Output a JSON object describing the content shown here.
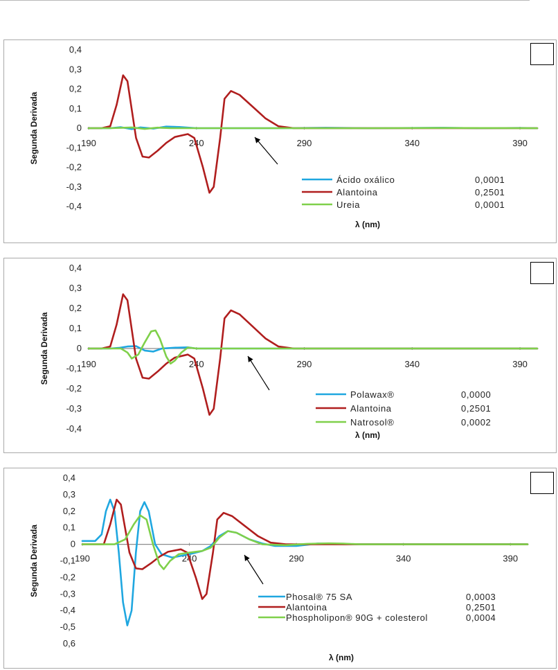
{
  "chart_data": [
    {
      "type": "line",
      "title": "",
      "xlabel": "λ (nm)",
      "ylabel": "Segunda Derivada",
      "xlim": [
        190,
        398
      ],
      "ylim": [
        -0.4,
        0.4
      ],
      "x_ticks": [
        "190",
        "240",
        "290",
        "340",
        "390"
      ],
      "y_ticks": [
        "0,4",
        "0,3",
        "0,2",
        "0,1",
        "0",
        "-0,1",
        "-0,2",
        "-0,3",
        "-0,4"
      ],
      "series": [
        {
          "name": "Ácido oxálico",
          "value": "0,0001",
          "color": "#1fa7e0",
          "points": [
            [
              190,
              0
            ],
            [
              200,
              0
            ],
            [
              205,
              0.005
            ],
            [
              210,
              -0.005
            ],
            [
              214,
              0.004
            ],
            [
              220,
              -0.002
            ],
            [
              226,
              0.008
            ],
            [
              232,
              0.006
            ],
            [
              240,
              0
            ],
            [
              260,
              0
            ],
            [
              280,
              0
            ],
            [
              300,
              0.002
            ],
            [
              320,
              0
            ],
            [
              340,
              0.001
            ],
            [
              355,
              0.002
            ],
            [
              370,
              0
            ],
            [
              390,
              0.001
            ],
            [
              398,
              0
            ]
          ]
        },
        {
          "name": "Alantoina",
          "value": "0,2501",
          "color": "#b01e1e",
          "points": [
            [
              190,
              0
            ],
            [
              196,
              0
            ],
            [
              200,
              0.01
            ],
            [
              203,
              0.12
            ],
            [
              206,
              0.27
            ],
            [
              208,
              0.24
            ],
            [
              212,
              -0.05
            ],
            [
              215,
              -0.145
            ],
            [
              218,
              -0.15
            ],
            [
              222,
              -0.115
            ],
            [
              226,
              -0.075
            ],
            [
              230,
              -0.045
            ],
            [
              236,
              -0.03
            ],
            [
              239,
              -0.05
            ],
            [
              243,
              -0.2
            ],
            [
              246,
              -0.33
            ],
            [
              248,
              -0.3
            ],
            [
              251,
              -0.05
            ],
            [
              253,
              0.15
            ],
            [
              256,
              0.19
            ],
            [
              260,
              0.17
            ],
            [
              266,
              0.11
            ],
            [
              272,
              0.05
            ],
            [
              278,
              0.01
            ],
            [
              285,
              0
            ],
            [
              300,
              0
            ],
            [
              320,
              0
            ],
            [
              340,
              0
            ],
            [
              360,
              0
            ],
            [
              380,
              0
            ],
            [
              398,
              0
            ]
          ]
        },
        {
          "name": "Ureia",
          "value": "0,0001",
          "color": "#7fd04a",
          "points": [
            [
              190,
              0
            ],
            [
              200,
              0
            ],
            [
              210,
              0.004
            ],
            [
              216,
              -0.004
            ],
            [
              222,
              0.003
            ],
            [
              228,
              0
            ],
            [
              240,
              0
            ],
            [
              260,
              0
            ],
            [
              290,
              0
            ],
            [
              320,
              0
            ],
            [
              350,
              0.001
            ],
            [
              398,
              0
            ]
          ]
        }
      ]
    },
    {
      "type": "line",
      "title": "",
      "xlabel": "λ (nm)",
      "ylabel": "Segunda Derivada",
      "xlim": [
        190,
        398
      ],
      "ylim": [
        -0.4,
        0.4
      ],
      "x_ticks": [
        "190",
        "240",
        "290",
        "340",
        "390"
      ],
      "y_ticks": [
        "0,4",
        "0,3",
        "0,2",
        "0,1",
        "0",
        "-0,1",
        "-0,2",
        "-0,3",
        "-0,4"
      ],
      "series": [
        {
          "name": "Polawax®",
          "value": "0,0000",
          "color": "#1fa7e0",
          "points": [
            [
              190,
              0
            ],
            [
              200,
              0
            ],
            [
              204,
              0.003
            ],
            [
              208,
              0.01
            ],
            [
              212,
              0.012
            ],
            [
              216,
              -0.01
            ],
            [
              220,
              -0.015
            ],
            [
              224,
              0
            ],
            [
              230,
              0.004
            ],
            [
              236,
              0.006
            ],
            [
              240,
              0
            ],
            [
              260,
              0
            ],
            [
              290,
              0
            ],
            [
              320,
              0
            ],
            [
              360,
              0
            ],
            [
              398,
              0
            ]
          ]
        },
        {
          "name": "Alantoina",
          "value": "0,2501",
          "color": "#b01e1e",
          "points": [
            [
              190,
              0
            ],
            [
              196,
              0
            ],
            [
              200,
              0.01
            ],
            [
              203,
              0.12
            ],
            [
              206,
              0.27
            ],
            [
              208,
              0.24
            ],
            [
              212,
              -0.05
            ],
            [
              215,
              -0.145
            ],
            [
              218,
              -0.15
            ],
            [
              222,
              -0.115
            ],
            [
              226,
              -0.075
            ],
            [
              230,
              -0.045
            ],
            [
              236,
              -0.03
            ],
            [
              239,
              -0.05
            ],
            [
              243,
              -0.2
            ],
            [
              246,
              -0.33
            ],
            [
              248,
              -0.3
            ],
            [
              251,
              -0.05
            ],
            [
              253,
              0.15
            ],
            [
              256,
              0.19
            ],
            [
              260,
              0.17
            ],
            [
              266,
              0.11
            ],
            [
              272,
              0.05
            ],
            [
              278,
              0.01
            ],
            [
              285,
              0
            ],
            [
              300,
              0
            ],
            [
              320,
              0
            ],
            [
              340,
              0
            ],
            [
              360,
              0
            ],
            [
              380,
              0
            ],
            [
              398,
              0
            ]
          ]
        },
        {
          "name": "Natrosol®",
          "value": "0,0002",
          "color": "#7fd04a",
          "points": [
            [
              190,
              0
            ],
            [
              205,
              0
            ],
            [
              208,
              -0.02
            ],
            [
              210,
              -0.05
            ],
            [
              213,
              -0.03
            ],
            [
              216,
              0.03
            ],
            [
              219,
              0.085
            ],
            [
              221,
              0.09
            ],
            [
              223,
              0.05
            ],
            [
              226,
              -0.04
            ],
            [
              228,
              -0.075
            ],
            [
              230,
              -0.06
            ],
            [
              233,
              -0.02
            ],
            [
              236,
              0.005
            ],
            [
              240,
              0
            ],
            [
              260,
              0
            ],
            [
              290,
              0
            ],
            [
              340,
              0
            ],
            [
              398,
              0
            ]
          ]
        }
      ]
    },
    {
      "type": "line",
      "title": "",
      "xlabel": "λ (nm)",
      "ylabel": "Segunda Derivada",
      "xlim": [
        190,
        398
      ],
      "ylim": [
        -0.6,
        0.4
      ],
      "x_ticks": [
        "190",
        "240",
        "290",
        "340",
        "390"
      ],
      "y_ticks": [
        "0,4",
        "0,3",
        "0,2",
        "0,1",
        "0",
        "-0,1",
        "-0,2",
        "-0,3",
        "-0,4",
        "-0,5",
        "0,6"
      ],
      "series": [
        {
          "name": "Phosal® 75 SA",
          "value": "0,0003",
          "color": "#1fa7e0",
          "points": [
            [
              190,
              0.02
            ],
            [
              196,
              0.02
            ],
            [
              199,
              0.06
            ],
            [
              201,
              0.2
            ],
            [
              203,
              0.27
            ],
            [
              205,
              0.2
            ],
            [
              207,
              -0.05
            ],
            [
              209,
              -0.35
            ],
            [
              211,
              -0.49
            ],
            [
              213,
              -0.4
            ],
            [
              215,
              -0.05
            ],
            [
              217,
              0.2
            ],
            [
              219,
              0.255
            ],
            [
              221,
              0.2
            ],
            [
              224,
              0
            ],
            [
              227,
              -0.06
            ],
            [
              232,
              -0.08
            ],
            [
              240,
              -0.06
            ],
            [
              246,
              -0.04
            ],
            [
              250,
              -0.01
            ],
            [
              254,
              0.05
            ],
            [
              258,
              0.08
            ],
            [
              262,
              0.07
            ],
            [
              268,
              0.03
            ],
            [
              274,
              0.005
            ],
            [
              280,
              -0.01
            ],
            [
              290,
              -0.01
            ],
            [
              300,
              0.005
            ],
            [
              310,
              0.003
            ],
            [
              320,
              0
            ],
            [
              360,
              0
            ],
            [
              398,
              0
            ]
          ]
        },
        {
          "name": "Alantoina",
          "value": "0,2501",
          "color": "#b01e1e",
          "points": [
            [
              190,
              0
            ],
            [
              200,
              0
            ],
            [
              203,
              0.12
            ],
            [
              206,
              0.27
            ],
            [
              208,
              0.24
            ],
            [
              212,
              -0.05
            ],
            [
              215,
              -0.145
            ],
            [
              218,
              -0.15
            ],
            [
              222,
              -0.115
            ],
            [
              226,
              -0.075
            ],
            [
              230,
              -0.045
            ],
            [
              236,
              -0.03
            ],
            [
              239,
              -0.05
            ],
            [
              243,
              -0.2
            ],
            [
              246,
              -0.33
            ],
            [
              248,
              -0.3
            ],
            [
              251,
              -0.05
            ],
            [
              253,
              0.15
            ],
            [
              256,
              0.19
            ],
            [
              260,
              0.17
            ],
            [
              266,
              0.11
            ],
            [
              272,
              0.05
            ],
            [
              278,
              0.01
            ],
            [
              285,
              0
            ],
            [
              300,
              0
            ],
            [
              340,
              0
            ],
            [
              380,
              0
            ],
            [
              398,
              0
            ]
          ]
        },
        {
          "name": "Phospholipon® 90G + colesterol",
          "value": "0,0004",
          "color": "#7fd04a",
          "points": [
            [
              190,
              0
            ],
            [
              205,
              0
            ],
            [
              210,
              0.03
            ],
            [
              214,
              0.12
            ],
            [
              217,
              0.175
            ],
            [
              220,
              0.15
            ],
            [
              223,
              0
            ],
            [
              226,
              -0.12
            ],
            [
              228,
              -0.15
            ],
            [
              231,
              -0.1
            ],
            [
              235,
              -0.06
            ],
            [
              240,
              -0.05
            ],
            [
              246,
              -0.04
            ],
            [
              250,
              -0.02
            ],
            [
              254,
              0.04
            ],
            [
              258,
              0.08
            ],
            [
              262,
              0.07
            ],
            [
              268,
              0.03
            ],
            [
              274,
              0
            ],
            [
              285,
              -0.005
            ],
            [
              295,
              0.003
            ],
            [
              305,
              0.006
            ],
            [
              312,
              0.004
            ],
            [
              320,
              0
            ],
            [
              398,
              0
            ]
          ]
        }
      ]
    }
  ]
}
